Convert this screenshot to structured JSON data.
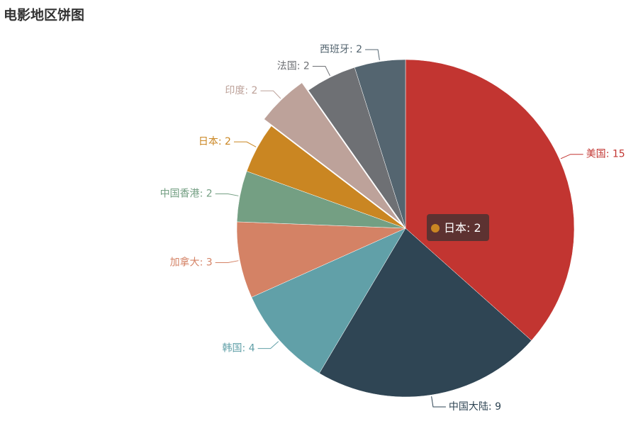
{
  "chart_data": {
    "type": "pie",
    "title": "电影地区饼图",
    "categories": [
      "美国",
      "中国大陆",
      "韩国",
      "加拿大",
      "中国香港",
      "日本",
      "印度",
      "法国",
      "西班牙"
    ],
    "values": [
      15,
      9,
      4,
      3,
      2,
      2,
      2,
      2,
      2
    ],
    "colors": [
      "#c23531",
      "#2f4554",
      "#61a0a8",
      "#d48265",
      "#749f83",
      "#ca8622",
      "#bda29a",
      "#6e7074",
      "#546570"
    ],
    "label_separator": ": ",
    "highlight": "印度",
    "tooltip": {
      "name": "日本",
      "value": 2
    }
  }
}
